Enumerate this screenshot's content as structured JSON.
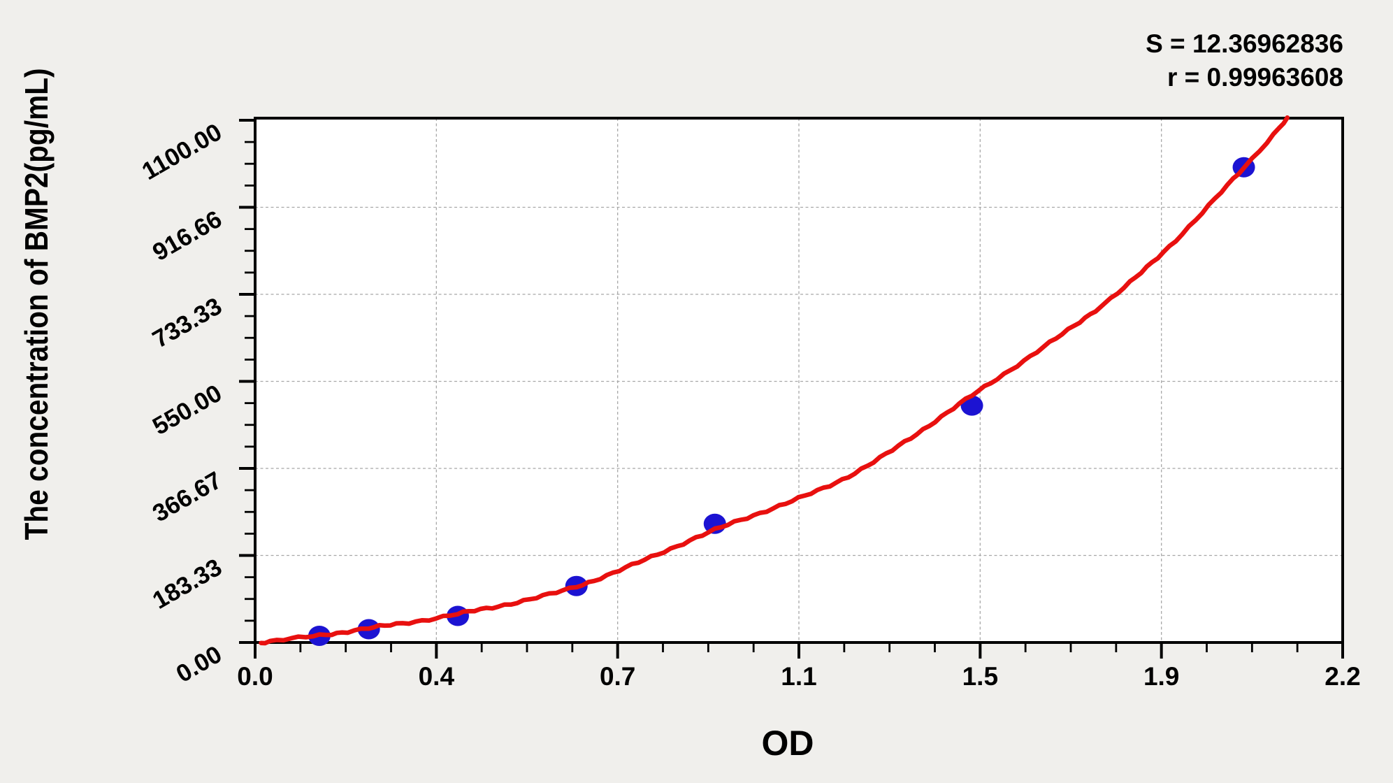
{
  "chart_data": {
    "type": "scatter",
    "title": "",
    "xlabel": "OD",
    "ylabel": "The concentration of BMP2(pg/mL)",
    "xlim": [
      0,
      2.2
    ],
    "ylim": [
      0,
      1100
    ],
    "x_tick_labels": [
      "0.0",
      "0.4",
      "0.7",
      "1.1",
      "1.5",
      "1.9",
      "2.2"
    ],
    "y_tick_labels": [
      "0.00",
      "183.33",
      "366.67",
      "550.00",
      "733.33",
      "916.66",
      "1100.00"
    ],
    "x_minor_ticks_per_interval": 3,
    "y_minor_ticks_per_interval": 3,
    "grid": true,
    "legend_position": "none",
    "annotations": {
      "s": "S = 12.36962836",
      "r": "r = 0.99963608"
    },
    "series": [
      {
        "name": "standard-points",
        "type": "scatter",
        "marker": "ellipse",
        "color": "#1c13d2",
        "points": [
          {
            "od": 0.13,
            "conc": 14
          },
          {
            "od": 0.23,
            "conc": 28
          },
          {
            "od": 0.41,
            "conc": 56
          },
          {
            "od": 0.65,
            "conc": 119
          },
          {
            "od": 0.93,
            "conc": 250
          },
          {
            "od": 1.45,
            "conc": 499
          },
          {
            "od": 2.0,
            "conc": 1001
          }
        ]
      },
      {
        "name": "fitted-standard-curve",
        "type": "line",
        "color": "#e8100f",
        "points": [
          {
            "od": 0.012,
            "conc": 0
          },
          {
            "od": 0.13,
            "conc": 15
          },
          {
            "od": 0.23,
            "conc": 30
          },
          {
            "od": 0.41,
            "conc": 60
          },
          {
            "od": 0.65,
            "conc": 118
          },
          {
            "od": 0.93,
            "conc": 237
          },
          {
            "od": 1.2,
            "conc": 350
          },
          {
            "od": 1.45,
            "conc": 520
          },
          {
            "od": 1.7,
            "conc": 700
          },
          {
            "od": 1.85,
            "conc": 835
          },
          {
            "od": 2.0,
            "conc": 1000
          },
          {
            "od": 2.088,
            "conc": 1104
          }
        ]
      }
    ],
    "colors": {
      "point": "#1c13d2",
      "curve": "#e8100f",
      "grid": "#a8a8a8",
      "axis": "#000000",
      "plot_background": "#ffffff",
      "page_background": "#f0efec"
    }
  }
}
